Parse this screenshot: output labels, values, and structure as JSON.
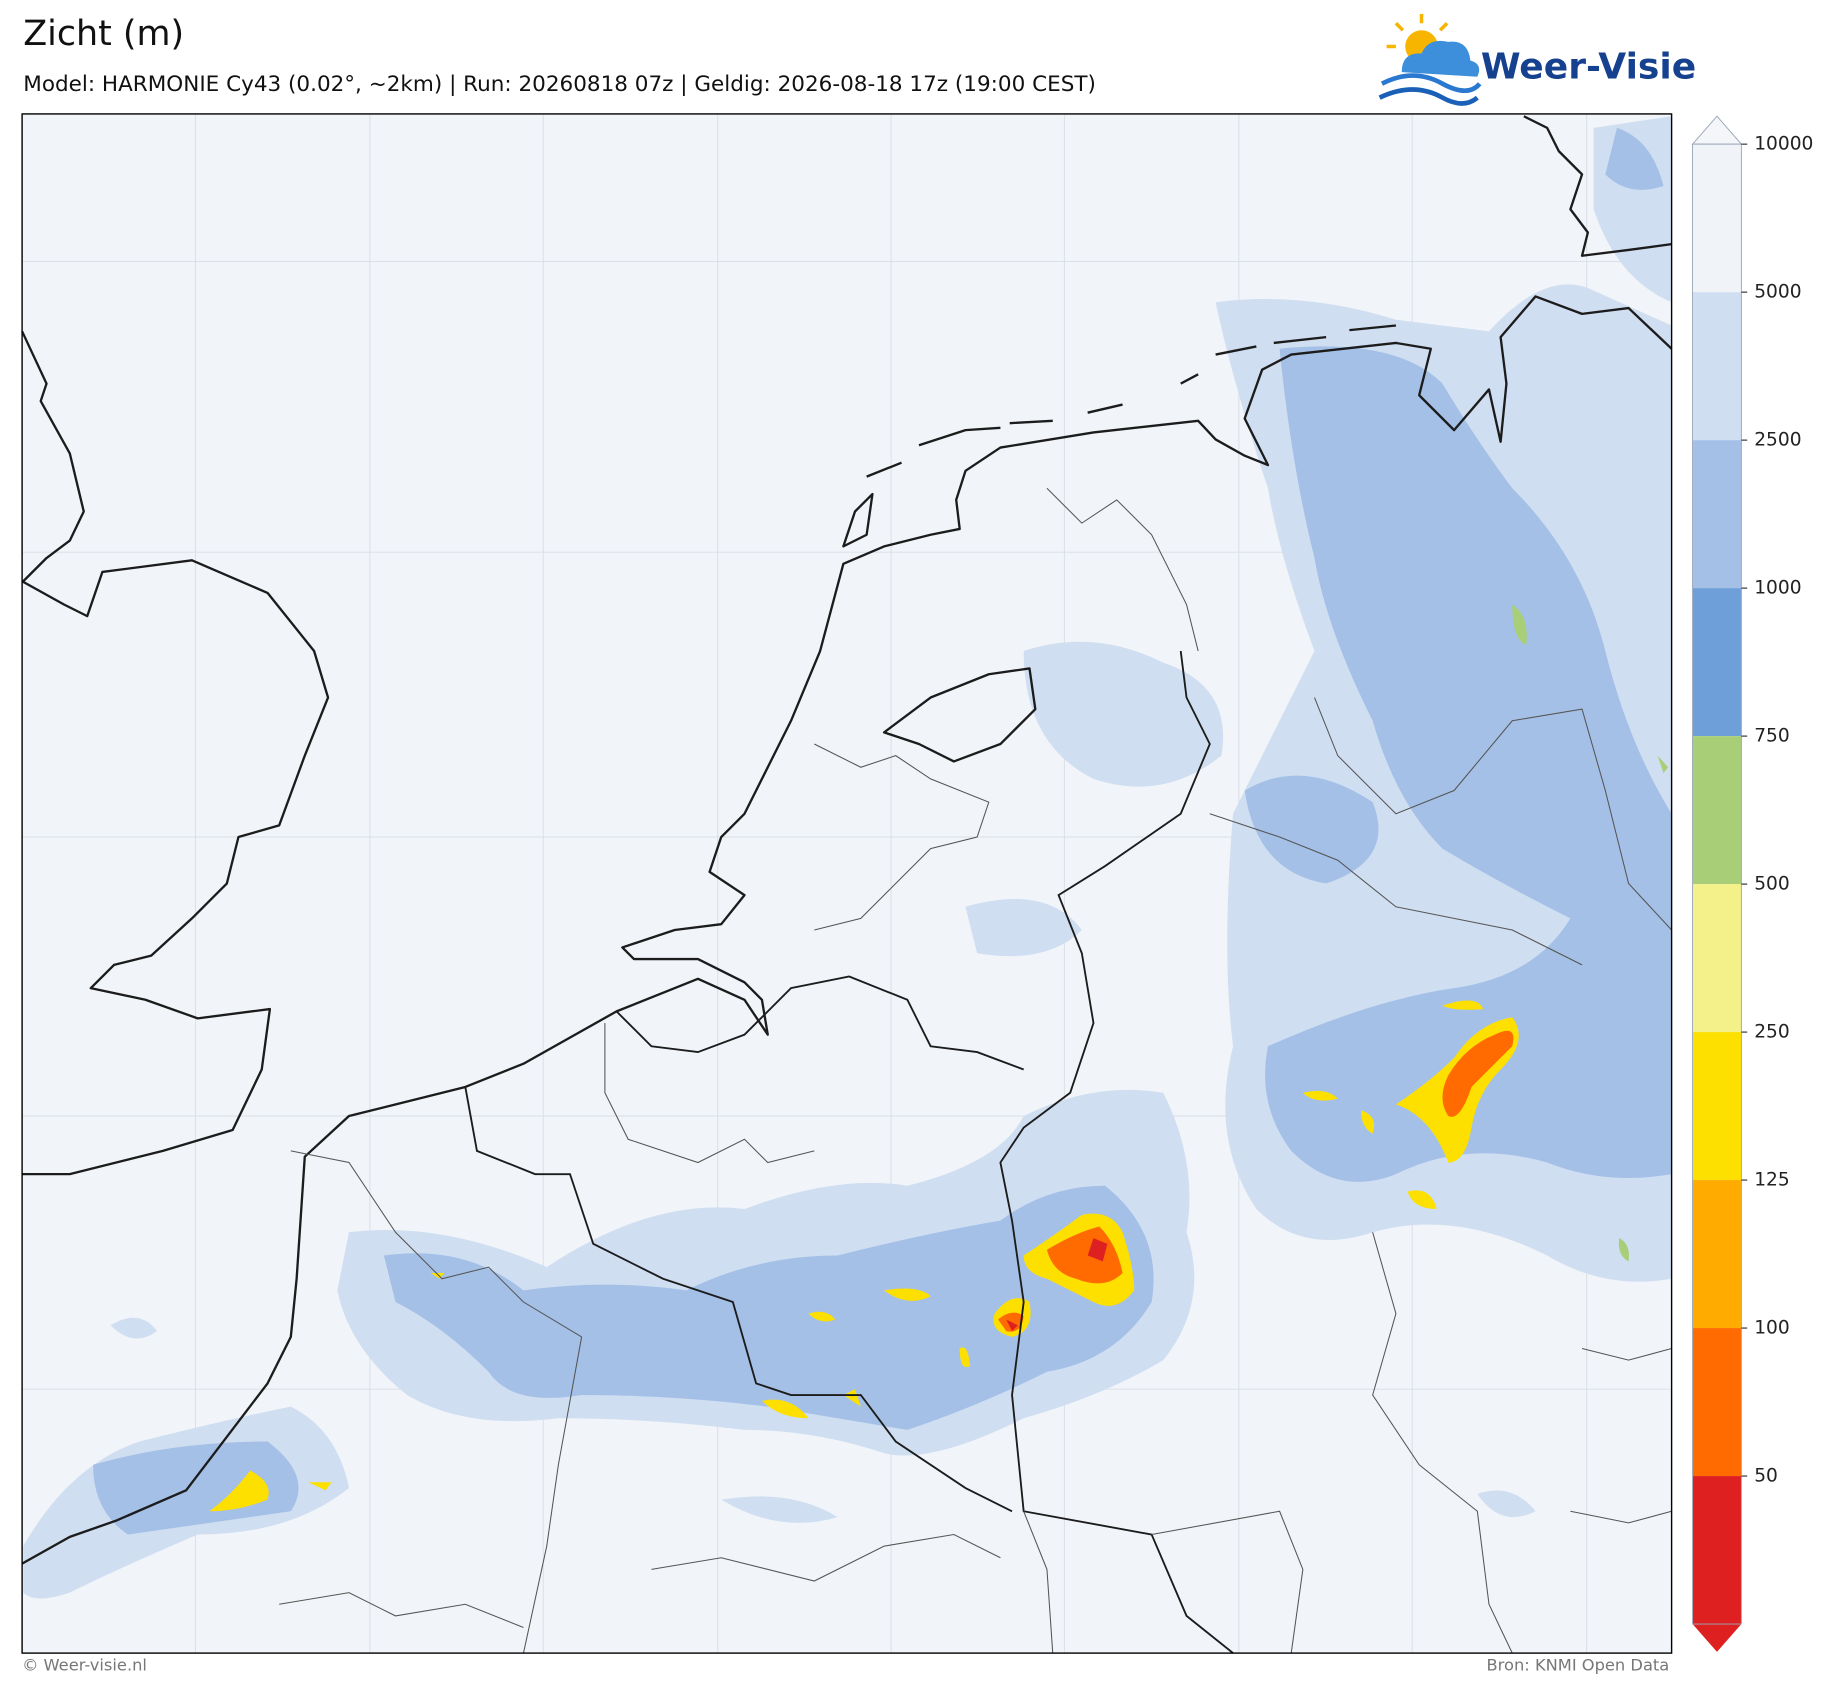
{
  "header": {
    "title": "Zicht (m)",
    "subtitle": "Model: HARMONIE Cy43 (0.02°, ~2km)  |  Run: 20260818 07z  |  Geldig: 2026-08-18 17z (19:00 CEST)"
  },
  "logo": {
    "text": "Weer-Visie"
  },
  "colorbar": {
    "ticks": [
      10000,
      5000,
      2500,
      1000,
      750,
      500,
      250,
      125,
      100,
      50
    ],
    "colors": [
      "#f0f3f8",
      "#cfdef1",
      "#a4c0e7",
      "#6f9fd8",
      "#a8cf78",
      "#f4f08a",
      "#fde000",
      "#ffab00",
      "#ff6b00",
      "#de2020"
    ],
    "over_color": "#f4f6fa",
    "under_color": "#de2020"
  },
  "footer": {
    "copyright": "© Weer-visie.nl",
    "source": "Bron: KNMI Open Data"
  }
}
